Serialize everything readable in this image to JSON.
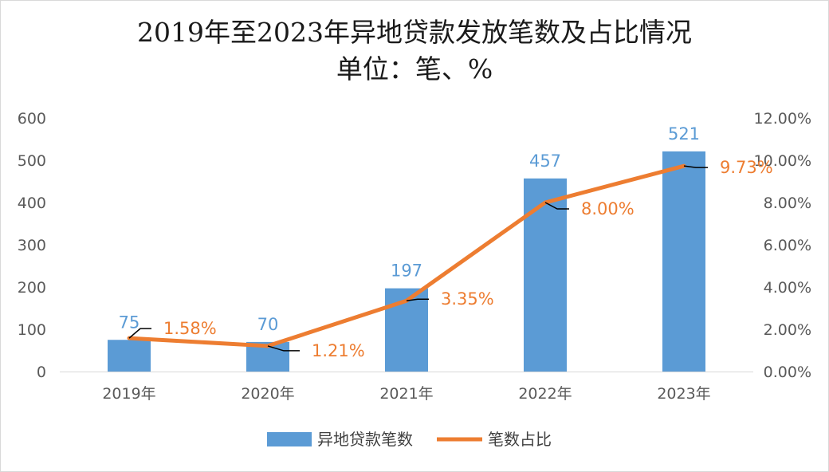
{
  "chart_data": {
    "type": "bar",
    "title": "2019年至2023年异地贷款发放笔数及占比情况",
    "subtitle": "单位：笔、%",
    "categories": [
      "2019年",
      "2020年",
      "2021年",
      "2022年",
      "2023年"
    ],
    "series": [
      {
        "name": "异地贷款笔数",
        "type": "bar",
        "axis": "left",
        "values": [
          75,
          70,
          197,
          457,
          521
        ],
        "color": "#5B9BD5",
        "data_labels": [
          "75",
          "70",
          "197",
          "457",
          "521"
        ]
      },
      {
        "name": "笔数占比",
        "type": "line",
        "axis": "right",
        "values": [
          1.58,
          1.21,
          3.35,
          8.0,
          9.73
        ],
        "color": "#ED7D31",
        "data_labels": [
          "1.58%",
          "1.21%",
          "3.35%",
          "8.00%",
          "9.73%"
        ]
      }
    ],
    "y_left": {
      "min": 0,
      "max": 600,
      "ticks": [
        "0",
        "100",
        "200",
        "300",
        "400",
        "500",
        "600"
      ]
    },
    "y_right": {
      "min": 0,
      "max": 12,
      "ticks": [
        "0.00%",
        "2.00%",
        "4.00%",
        "6.00%",
        "8.00%",
        "10.00%",
        "12.00%"
      ]
    },
    "grid": false,
    "legend": "bottom"
  }
}
